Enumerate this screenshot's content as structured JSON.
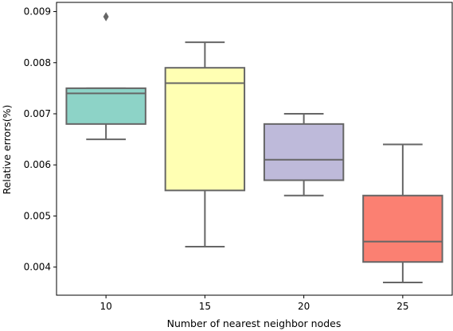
{
  "chart_data": {
    "type": "box",
    "xlabel": "Number of nearest neighbor nodes",
    "ylabel": "Relative errors(%)",
    "ylim": [
      0.00345,
      0.00918
    ],
    "yticks": [
      "0.004",
      "0.005",
      "0.006",
      "0.007",
      "0.008",
      "0.009"
    ],
    "categories": [
      "10",
      "15",
      "20",
      "25"
    ],
    "boxes": [
      {
        "category": "10",
        "whislo": 0.0065,
        "q1": 0.0068,
        "median": 0.0074,
        "q3": 0.0075,
        "whishi": 0.0075,
        "fliers": [
          0.0089
        ],
        "color": "#8dd3c7"
      },
      {
        "category": "15",
        "whislo": 0.0044,
        "q1": 0.0055,
        "median": 0.0076,
        "q3": 0.0079,
        "whishi": 0.0084,
        "fliers": [],
        "color": "#ffffb3"
      },
      {
        "category": "20",
        "whislo": 0.0054,
        "q1": 0.0057,
        "median": 0.0061,
        "q3": 0.0068,
        "whishi": 0.007,
        "fliers": [],
        "color": "#bebada"
      },
      {
        "category": "25",
        "whislo": 0.0037,
        "q1": 0.0041,
        "median": 0.0045,
        "q3": 0.0054,
        "whishi": 0.0064,
        "fliers": [],
        "color": "#fb8072"
      }
    ],
    "line_color": "#666666",
    "grid": false,
    "legend": "none"
  }
}
